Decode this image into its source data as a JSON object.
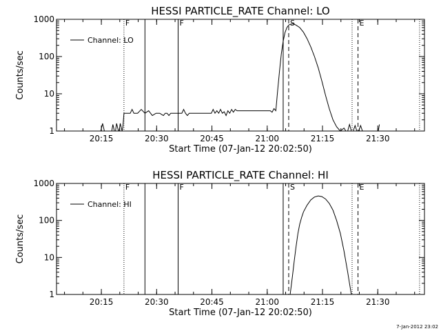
{
  "footer": {
    "timestamp": "7-Jan-2012 23:02"
  },
  "chart_data": [
    {
      "type": "line",
      "title": "HESSI PARTICLE_RATE Channel: LO",
      "xlabel": "Start Time (07-Jan-12 20:02:50)",
      "ylabel": "Counts/sec",
      "yscale": "log",
      "ylim": [
        1,
        1000
      ],
      "xlim": [
        "20:02:50",
        "21:42:40"
      ],
      "x_ticks": [
        "20:15",
        "20:30",
        "20:45",
        "21:00",
        "21:15",
        "21:30"
      ],
      "y_ticks": [
        "1",
        "10",
        "100",
        "1000"
      ],
      "legend": {
        "position": "top-left",
        "entries": [
          "Channel: LO"
        ]
      },
      "series": [
        {
          "name": "Channel: LO",
          "x_min": [
            12.0,
            12.5,
            13.0,
            13.3,
            15.0,
            15.3,
            15.7,
            16.0,
            16.3,
            16.8,
            17.0,
            17.3,
            17.8,
            18.0,
            18.3,
            19.0,
            19.5,
            20.0,
            20.5,
            21.0,
            22.0,
            23.0,
            24.0,
            25.0,
            26.0,
            27.0,
            28.0,
            29.0,
            29.5,
            30.0,
            30.5,
            31.0,
            32.0,
            33.0,
            34.0,
            34.5,
            35.0,
            35.5,
            36.0,
            37.0,
            38.0,
            39.0,
            40.0,
            41.0,
            42.0,
            42.5,
            43.0,
            43.5,
            44.0,
            44.5,
            45.0,
            45.5,
            46.0,
            46.5,
            47.0,
            47.5,
            48.0,
            48.5,
            49.0,
            50.0,
            51.0,
            52.0,
            53.0,
            54.0,
            55.0,
            56.0,
            57.0,
            58.0,
            58.5,
            59.0,
            59.5,
            60.0,
            60.5,
            61.0,
            61.5,
            62.0,
            62.5,
            63.0,
            63.5,
            64.0,
            64.5,
            65.0,
            66.0,
            67.0,
            68.0,
            69.0,
            70.0,
            71.0,
            72.0,
            73.0,
            74.0,
            75.0,
            76.0,
            77.0,
            78.0,
            78.5,
            79.0,
            79.5,
            80.0,
            80.5,
            81.0,
            81.5,
            82.0,
            82.5,
            83.0,
            83.5,
            84.0,
            85.0,
            87.0,
            87.3,
            87.6
          ],
          "y": [
            1,
            1.6,
            1,
            1,
            1,
            1.5,
            1,
            1,
            1.6,
            1,
            1,
            1.6,
            1,
            1.3,
            3,
            3,
            3,
            3,
            3.8,
            3,
            3,
            3.8,
            3,
            3.5,
            2.6,
            3,
            3,
            2.6,
            3,
            3,
            2.6,
            3,
            3,
            3,
            3,
            3.8,
            3,
            2.6,
            3,
            3,
            3,
            3,
            3,
            3,
            3,
            3.8,
            3,
            3.5,
            3,
            3.8,
            3,
            3.3,
            2.6,
            3.5,
            3,
            3.8,
            3.2,
            3.8,
            3.5,
            3.5,
            3.5,
            3.5,
            3.5,
            3.5,
            3.5,
            3.5,
            3.5,
            3.5,
            3.2,
            4,
            3.5,
            12,
            40,
            120,
            260,
            440,
            600,
            700,
            740,
            760,
            740,
            700,
            600,
            450,
            300,
            180,
            100,
            50,
            22,
            9,
            4,
            2,
            1.3,
            1,
            1.2,
            1,
            1,
            1.5,
            1,
            1,
            1.4,
            1,
            1,
            1.4,
            1,
            1,
            1,
            1,
            1,
            1,
            1.5,
            1
          ]
        }
      ],
      "flags": [
        {
          "label": "F",
          "x_min": 18.3,
          "style": "dotted"
        },
        {
          "label": "",
          "x_min": 24.0,
          "style": "solid"
        },
        {
          "label": "F",
          "x_min": 33.0,
          "style": "solid"
        },
        {
          "label": "",
          "x_min": 61.5,
          "style": "solid"
        },
        {
          "label": "S",
          "x_min": 63.0,
          "style": "dashed"
        },
        {
          "label": "",
          "x_min": 80.2,
          "style": "dotted"
        },
        {
          "label": "E",
          "x_min": 81.8,
          "style": "dashed"
        },
        {
          "label": "",
          "x_min": 98.5,
          "style": "dotted"
        }
      ]
    },
    {
      "type": "line",
      "title": "HESSI PARTICLE_RATE Channel: HI",
      "xlabel": "Start Time (07-Jan-12 20:02:50)",
      "ylabel": "Counts/sec",
      "yscale": "log",
      "ylim": [
        1,
        1000
      ],
      "xlim": [
        "20:02:50",
        "21:42:40"
      ],
      "x_ticks": [
        "20:15",
        "20:30",
        "20:45",
        "21:00",
        "21:15",
        "21:30"
      ],
      "y_ticks": [
        "1",
        "10",
        "100",
        "1000"
      ],
      "legend": {
        "position": "top-left",
        "entries": [
          "Channel: HI"
        ]
      },
      "series": [
        {
          "name": "Channel: HI",
          "x_min": [
            63.4,
            64.0,
            64.5,
            65.0,
            65.5,
            66.0,
            66.5,
            67.0,
            68.0,
            69.0,
            70.0,
            71.0,
            72.0,
            73.0,
            74.0,
            75.0,
            76.0,
            77.0,
            78.0,
            79.0,
            79.5,
            80.0
          ],
          "y": [
            1,
            3,
            8,
            20,
            45,
            80,
            120,
            170,
            260,
            360,
            430,
            460,
            440,
            380,
            290,
            190,
            100,
            45,
            15,
            4,
            2,
            1
          ]
        }
      ],
      "flags": [
        {
          "label": "F",
          "x_min": 18.3,
          "style": "dotted"
        },
        {
          "label": "",
          "x_min": 24.0,
          "style": "solid"
        },
        {
          "label": "F",
          "x_min": 33.0,
          "style": "solid"
        },
        {
          "label": "",
          "x_min": 61.5,
          "style": "solid"
        },
        {
          "label": "S",
          "x_min": 63.0,
          "style": "dashed"
        },
        {
          "label": "",
          "x_min": 80.2,
          "style": "dotted"
        },
        {
          "label": "E",
          "x_min": 81.8,
          "style": "dashed"
        },
        {
          "label": "",
          "x_min": 98.5,
          "style": "dotted"
        }
      ]
    }
  ]
}
